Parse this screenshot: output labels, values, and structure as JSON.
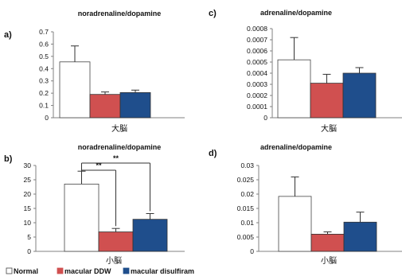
{
  "colors": {
    "normal": "#ffffff",
    "ddw": "#d05050",
    "disulfiram": "#1f4e8c",
    "axis": "#808080"
  },
  "legend": [
    {
      "key": "normal",
      "label": "Normal"
    },
    {
      "key": "ddw",
      "label": "macular DDW"
    },
    {
      "key": "disulfiram",
      "label": "macular disulfiram"
    }
  ],
  "chart_data": [
    {
      "panel": "a)",
      "type": "bar",
      "title": "noradrenaline/dopamine",
      "categories": [
        "大脳"
      ],
      "series": [
        {
          "name": "Normal",
          "values": [
            0.455
          ],
          "error": [
            0.13
          ]
        },
        {
          "name": "macular DDW",
          "values": [
            0.19
          ],
          "error": [
            0.02
          ]
        },
        {
          "name": "macular disulfiram",
          "values": [
            0.205
          ],
          "error": [
            0.02
          ]
        }
      ],
      "ylim": [
        0,
        0.7
      ],
      "yticks": [
        "0",
        "0.1",
        "0.2",
        "0.3",
        "0.4",
        "0.5",
        "0.6",
        "0.7"
      ],
      "significance": []
    },
    {
      "panel": "b)",
      "type": "bar",
      "title": "noradrenaline/dopamine",
      "categories": [
        "小脳"
      ],
      "series": [
        {
          "name": "Normal",
          "values": [
            23.5
          ],
          "error": [
            4.5
          ]
        },
        {
          "name": "macular DDW",
          "values": [
            6.8
          ],
          "error": [
            1.2
          ]
        },
        {
          "name": "macular disulfiram",
          "values": [
            11.2
          ],
          "error": [
            2.0
          ]
        }
      ],
      "ylim": [
        0,
        30
      ],
      "yticks": [
        "0",
        "5",
        "10",
        "15",
        "20",
        "25",
        "30"
      ],
      "significance": [
        {
          "from": 0,
          "to": 1,
          "label": "**"
        },
        {
          "from": 0,
          "to": 2,
          "label": "**"
        }
      ]
    },
    {
      "panel": "c)",
      "type": "bar",
      "title": "adrenaline/dopamine",
      "categories": [
        "大脳"
      ],
      "series": [
        {
          "name": "Normal",
          "values": [
            0.00052
          ],
          "error": [
            0.0002
          ]
        },
        {
          "name": "macular DDW",
          "values": [
            0.00031
          ],
          "error": [
            8e-05
          ]
        },
        {
          "name": "macular disulfiram",
          "values": [
            0.0004
          ],
          "error": [
            5e-05
          ]
        }
      ],
      "ylim": [
        0,
        0.0008
      ],
      "yticks": [
        "0",
        "0.0001",
        "0.0002",
        "0.0003",
        "0.0004",
        "0.0005",
        "0.0006",
        "0.0007",
        "0.0008"
      ],
      "significance": []
    },
    {
      "panel": "d)",
      "type": "bar",
      "title": "adrenaline/dopamine",
      "categories": [
        "小脳"
      ],
      "series": [
        {
          "name": "Normal",
          "values": [
            0.0192
          ],
          "error": [
            0.0068
          ]
        },
        {
          "name": "macular DDW",
          "values": [
            0.006
          ],
          "error": [
            0.0008
          ]
        },
        {
          "name": "macular disulfiram",
          "values": [
            0.0102
          ],
          "error": [
            0.0035
          ]
        }
      ],
      "ylim": [
        0,
        0.03
      ],
      "yticks": [
        "0",
        "0.005",
        "0.01",
        "0.015",
        "0.02",
        "0.025",
        "0.03"
      ],
      "significance": []
    }
  ]
}
